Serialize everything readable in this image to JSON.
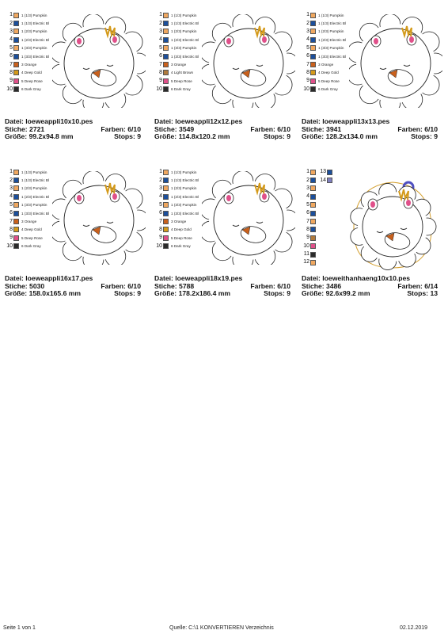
{
  "legend_colors": {
    "pumpkin": "#f0a860",
    "electric_blue": "#1b4f9c",
    "orange": "#c9601c",
    "deep_gold": "#d49a1a",
    "light_brown": "#b07a3c",
    "deep_rose": "#e0508a",
    "dark_gray": "#2b2b2b",
    "violet": "#8080c0"
  },
  "designs": [
    {
      "legend": [
        {
          "n": "1",
          "c": "pumpkin",
          "label": "1 (1/3) Pumpkin"
        },
        {
          "n": "2",
          "c": "electric_blue",
          "label": "1 (1/3) Electric Bl"
        },
        {
          "n": "3",
          "c": "pumpkin",
          "label": "1 (2/3) Pumpkin"
        },
        {
          "n": "4",
          "c": "electric_blue",
          "label": "1 (2/3) Electric Bl"
        },
        {
          "n": "5",
          "c": "pumpkin",
          "label": "1 (3/3) Pumpkin"
        },
        {
          "n": "6",
          "c": "electric_blue",
          "label": "1 (3/3) Electric Bl"
        },
        {
          "n": "7",
          "c": "orange",
          "label": "3 Orange"
        },
        {
          "n": "8",
          "c": "deep_gold",
          "label": "4 Deep Gold"
        },
        {
          "n": "9",
          "c": "deep_rose",
          "label": "5 Deep Rose"
        },
        {
          "n": "10",
          "c": "dark_gray",
          "label": "6 Dark Gray"
        }
      ],
      "file_label": "Datei:",
      "file": "loeweappli10x10.pes",
      "stitches_label": "Stiche:",
      "stitches": "2721",
      "colors_label": "Farben:",
      "colors": "6/10",
      "size_label": "Größe:",
      "size": "99.2x94.8 mm",
      "stops_label": "Stops:",
      "stops": "9"
    },
    {
      "legend": [
        {
          "n": "1",
          "c": "pumpkin",
          "label": "1 (1/3) Pumpkin"
        },
        {
          "n": "2",
          "c": "electric_blue",
          "label": "1 (1/3) Electric Bl"
        },
        {
          "n": "3",
          "c": "pumpkin",
          "label": "1 (2/3) Pumpkin"
        },
        {
          "n": "4",
          "c": "electric_blue",
          "label": "1 (2/3) Electric Bl"
        },
        {
          "n": "5",
          "c": "pumpkin",
          "label": "1 (3/3) Pumpkin"
        },
        {
          "n": "6",
          "c": "electric_blue",
          "label": "1 (3/3) Electric Bl"
        },
        {
          "n": "7",
          "c": "orange",
          "label": "3 Orange"
        },
        {
          "n": "8",
          "c": "light_brown",
          "label": "4 Light Brown"
        },
        {
          "n": "9",
          "c": "deep_rose",
          "label": "5 Deep Rose"
        },
        {
          "n": "10",
          "c": "dark_gray",
          "label": "6 Dark Gray"
        }
      ],
      "file_label": "Datei:",
      "file": "loeweappli12x12.pes",
      "stitches_label": "Stiche:",
      "stitches": "3549",
      "colors_label": "Farben:",
      "colors": "6/10",
      "size_label": "Größe:",
      "size": "114.8x120.2 mm",
      "stops_label": "Stops:",
      "stops": "9"
    },
    {
      "legend": [
        {
          "n": "1",
          "c": "pumpkin",
          "label": "1 (1/3) Pumpkin"
        },
        {
          "n": "2",
          "c": "electric_blue",
          "label": "1 (1/3) Electric Bl"
        },
        {
          "n": "3",
          "c": "pumpkin",
          "label": "1 (2/3) Pumpkin"
        },
        {
          "n": "4",
          "c": "electric_blue",
          "label": "1 (2/3) Electric Bl"
        },
        {
          "n": "5",
          "c": "pumpkin",
          "label": "1 (3/3) Pumpkin"
        },
        {
          "n": "6",
          "c": "electric_blue",
          "label": "1 (3/3) Electric Bl"
        },
        {
          "n": "7",
          "c": "orange",
          "label": "3 Orange"
        },
        {
          "n": "8",
          "c": "deep_gold",
          "label": "4 Deep Gold"
        },
        {
          "n": "9",
          "c": "deep_rose",
          "label": "5 Deep Rose"
        },
        {
          "n": "10",
          "c": "dark_gray",
          "label": "6 Dark Gray"
        }
      ],
      "file_label": "Datei:",
      "file": "loeweappli13x13.pes",
      "stitches_label": "Stiche:",
      "stitches": "3941",
      "colors_label": "Farben:",
      "colors": "6/10",
      "size_label": "Größe:",
      "size": "128.2x134.0 mm",
      "stops_label": "Stops:",
      "stops": "9"
    },
    {
      "legend": [
        {
          "n": "1",
          "c": "pumpkin",
          "label": "1 (1/3) Pumpkin"
        },
        {
          "n": "2",
          "c": "electric_blue",
          "label": "1 (1/3) Electric Bl"
        },
        {
          "n": "3",
          "c": "pumpkin",
          "label": "1 (2/3) Pumpkin"
        },
        {
          "n": "4",
          "c": "electric_blue",
          "label": "1 (2/3) Electric Bl"
        },
        {
          "n": "5",
          "c": "pumpkin",
          "label": "1 (3/3) Pumpkin"
        },
        {
          "n": "6",
          "c": "electric_blue",
          "label": "1 (3/3) Electric Bl"
        },
        {
          "n": "7",
          "c": "orange",
          "label": "3 Orange"
        },
        {
          "n": "8",
          "c": "deep_gold",
          "label": "4 Deep Gold"
        },
        {
          "n": "9",
          "c": "deep_rose",
          "label": "5 Deep Rose"
        },
        {
          "n": "10",
          "c": "dark_gray",
          "label": "6 Dark Gray"
        }
      ],
      "file_label": "Datei:",
      "file": "loeweappli16x17.pes",
      "stitches_label": "Stiche:",
      "stitches": "5030",
      "colors_label": "Farben:",
      "colors": "6/10",
      "size_label": "Größe:",
      "size": "158.0x165.6 mm",
      "stops_label": "Stops:",
      "stops": "9"
    },
    {
      "legend": [
        {
          "n": "1",
          "c": "pumpkin",
          "label": "1 (1/3) Pumpkin"
        },
        {
          "n": "2",
          "c": "electric_blue",
          "label": "1 (1/3) Electric Bl"
        },
        {
          "n": "3",
          "c": "pumpkin",
          "label": "1 (2/3) Pumpkin"
        },
        {
          "n": "4",
          "c": "electric_blue",
          "label": "1 (2/3) Electric Bl"
        },
        {
          "n": "5",
          "c": "pumpkin",
          "label": "1 (3/3) Pumpkin"
        },
        {
          "n": "6",
          "c": "electric_blue",
          "label": "1 (3/3) Electric Bl"
        },
        {
          "n": "7",
          "c": "orange",
          "label": "3 Orange"
        },
        {
          "n": "8",
          "c": "deep_gold",
          "label": "4 Deep Gold"
        },
        {
          "n": "9",
          "c": "deep_rose",
          "label": "5 Deep Rose"
        },
        {
          "n": "10",
          "c": "dark_gray",
          "label": "6 Dark Gray"
        }
      ],
      "file_label": "Datei:",
      "file": "loeweappli18x19.pes",
      "stitches_label": "Stiche:",
      "stitches": "5788",
      "colors_label": "Farben:",
      "colors": "6/10",
      "size_label": "Größe:",
      "size": "178.2x186.4 mm",
      "stops_label": "Stops:",
      "stops": "9"
    },
    {
      "legend": [
        {
          "n": "1",
          "c": "pumpkin",
          "label": ""
        },
        {
          "n": "2",
          "c": "electric_blue",
          "label": ""
        },
        {
          "n": "3",
          "c": "pumpkin",
          "label": ""
        },
        {
          "n": "4",
          "c": "electric_blue",
          "label": ""
        },
        {
          "n": "5",
          "c": "pumpkin",
          "label": ""
        },
        {
          "n": "6",
          "c": "electric_blue",
          "label": ""
        },
        {
          "n": "7",
          "c": "pumpkin",
          "label": ""
        },
        {
          "n": "8",
          "c": "electric_blue",
          "label": ""
        },
        {
          "n": "9",
          "c": "light_brown",
          "label": ""
        },
        {
          "n": "10",
          "c": "deep_rose",
          "label": ""
        },
        {
          "n": "11",
          "c": "dark_gray",
          "label": ""
        },
        {
          "n": "12",
          "c": "pumpkin",
          "label": ""
        }
      ],
      "legend_extra": [
        {
          "n": "13",
          "c": "electric_blue"
        },
        {
          "n": "14",
          "c": "violet"
        }
      ],
      "file_label": "Datei:",
      "file": "loeweithanhaeng10x10.pes",
      "stitches_label": "Stiche:",
      "stitches": "3486",
      "colors_label": "Farben:",
      "colors": "6/14",
      "size_label": "Größe:",
      "size": "92.6x99.2 mm",
      "stops_label": "Stops:",
      "stops": "13"
    }
  ],
  "footer": {
    "page": "Seite 1 von 1",
    "source": "Quelle: C:\\1 KONVERTIEREN Verzeichnis",
    "date": "02.12.2019"
  }
}
